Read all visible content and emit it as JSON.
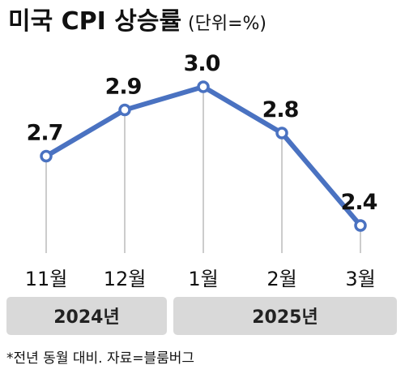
{
  "chart_data": {
    "type": "line",
    "title": "미국 CPI 상승률",
    "unit": "(단위=%)",
    "categories": [
      "11월",
      "12월",
      "1월",
      "2월",
      "3월"
    ],
    "series": [
      {
        "values": [
          2.7,
          2.9,
          3.0,
          2.8,
          2.4
        ]
      }
    ],
    "data_labels": [
      "2.7",
      "2.9",
      "3.0",
      "2.8",
      "2.4"
    ],
    "years": [
      {
        "label": "2024년",
        "span": [
          0,
          1
        ]
      },
      {
        "label": "2025년",
        "span": [
          2,
          4
        ]
      }
    ],
    "footnote": "*전년 동월 대비. 자료=블룸버그",
    "ylim": [
      2.0,
      3.2
    ],
    "grid": "vertical drop lines",
    "line_color": "#4a72c1",
    "band_color": "#d9d9d9"
  }
}
